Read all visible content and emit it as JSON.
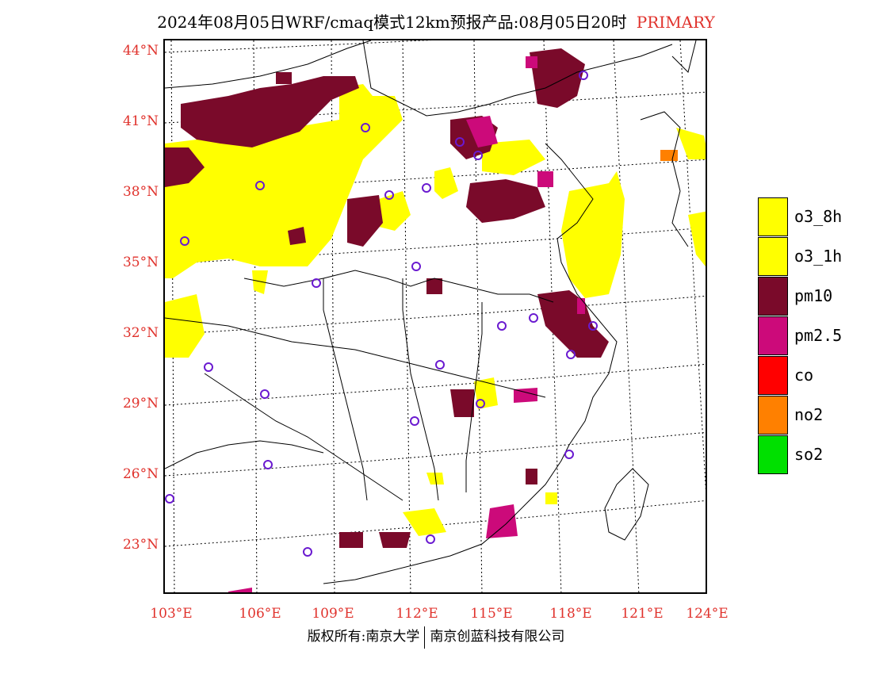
{
  "title": {
    "text": "2024年08月05日WRF/cmaq模式12km预报产品:08月05日20时",
    "mode": "PRIMARY"
  },
  "lat_labels": [
    "44°N",
    "41°N",
    "38°N",
    "35°N",
    "32°N",
    "29°N",
    "26°N",
    "23°N"
  ],
  "lon_labels": [
    "103°E",
    "106°E",
    "109°E",
    "112°E",
    "115°E",
    "118°E",
    "121°E",
    "124°E"
  ],
  "legend": [
    {
      "label": "o3_8h",
      "color": "#ffff00"
    },
    {
      "label": "o3_1h",
      "color": "#ffff00"
    },
    {
      "label": "pm10",
      "color": "#7a0a2a"
    },
    {
      "label": "pm2.5",
      "color": "#cc0a7a"
    },
    {
      "label": "co",
      "color": "#ff0000"
    },
    {
      "label": "no2",
      "color": "#ff8000"
    },
    {
      "label": "so2",
      "color": "#00e000"
    }
  ],
  "footer": {
    "left": "版权所有:南京大学",
    "right": "南京创蓝科技有限公司"
  }
}
